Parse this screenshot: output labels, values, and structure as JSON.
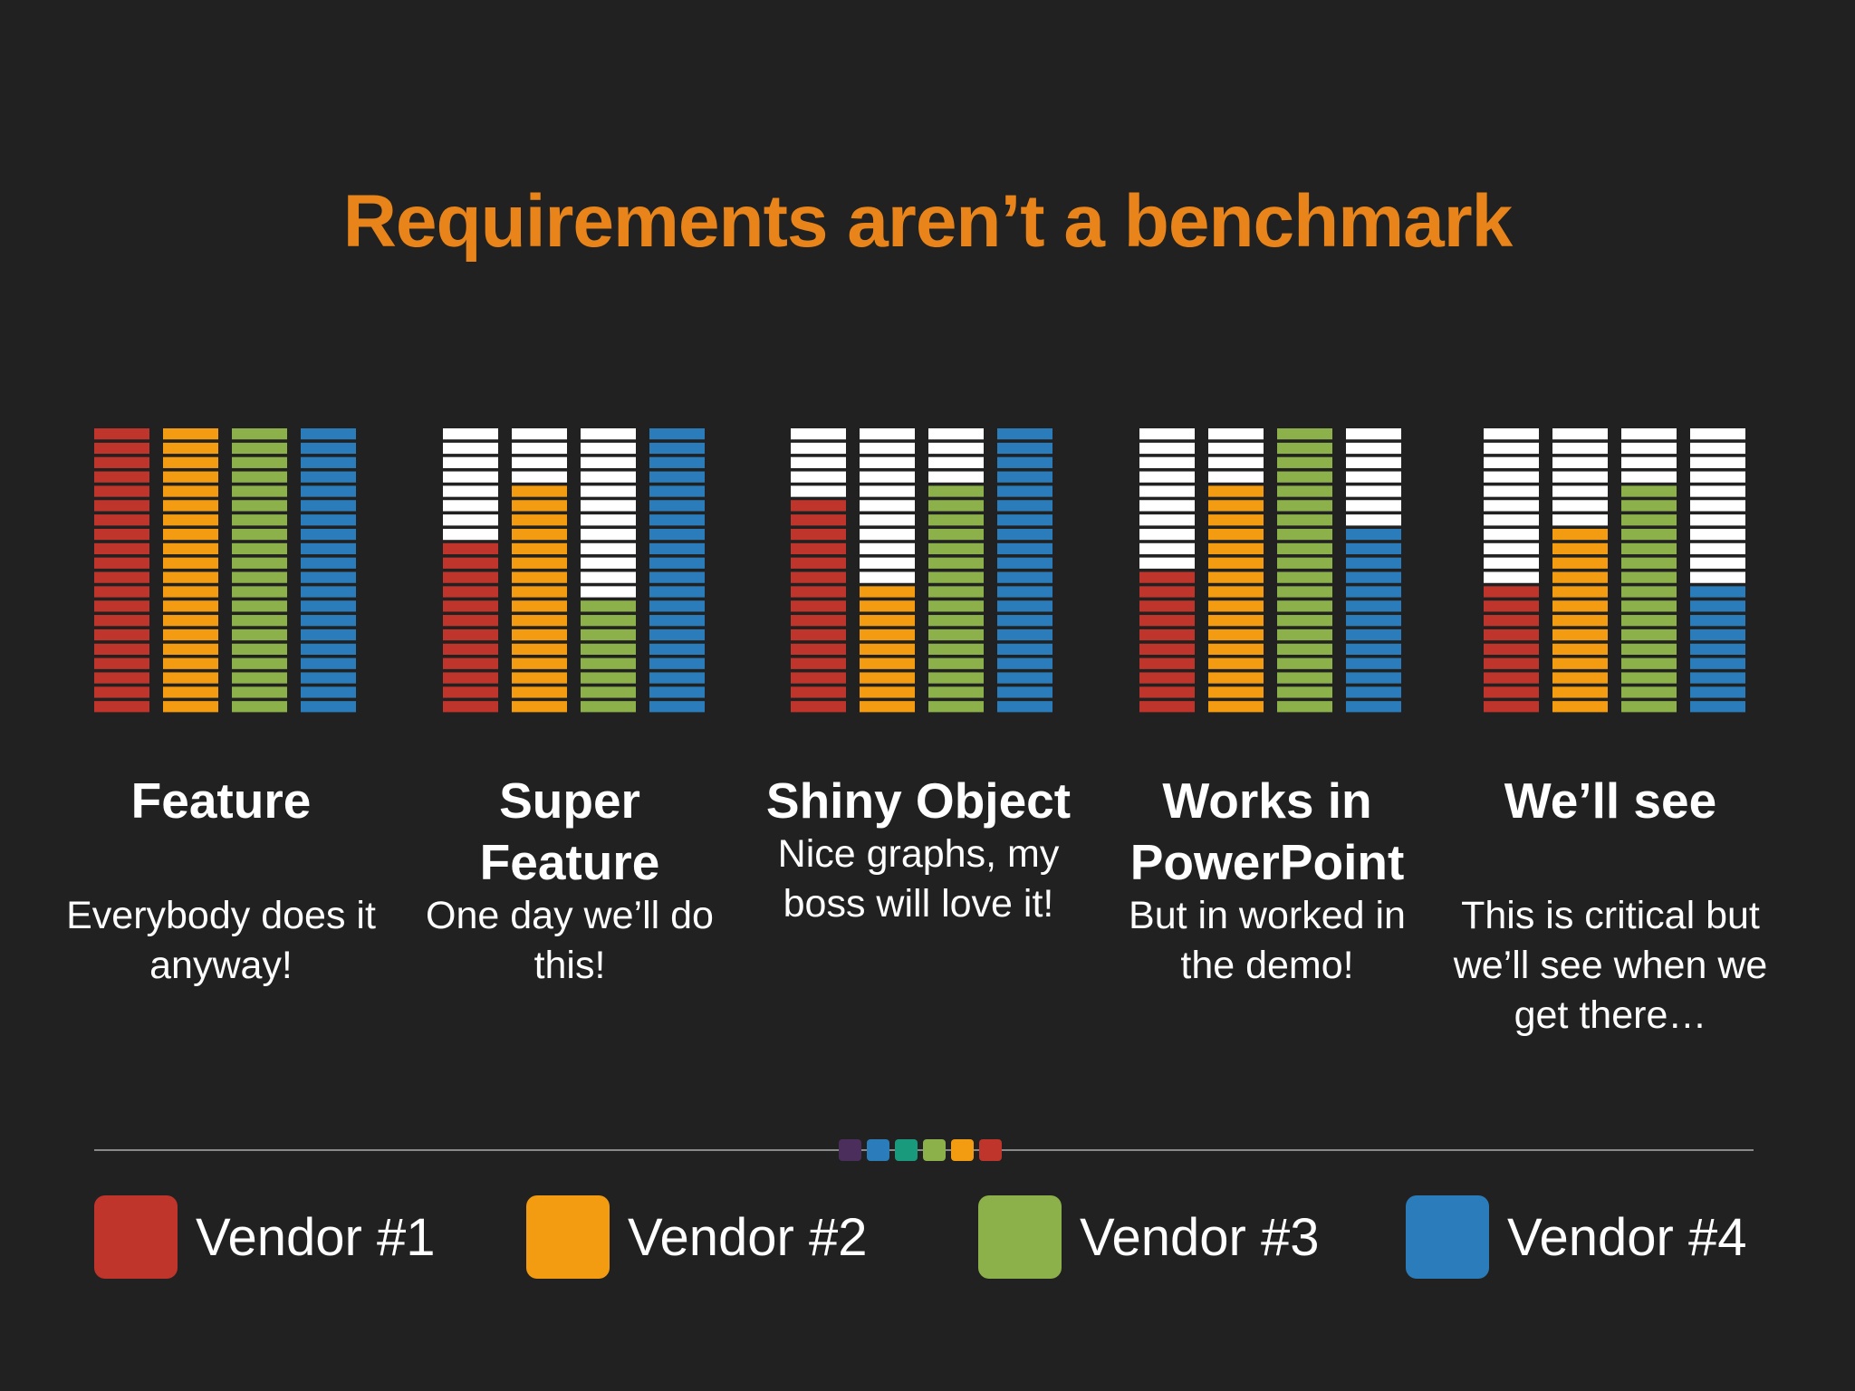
{
  "title": "Requirements aren’t a benchmark",
  "colors": {
    "background": "#212121",
    "title": "#E8841A",
    "empty": "#ffffff",
    "vendor1": "#C0352B",
    "vendor2": "#F39C12",
    "vendor3": "#8CB04A",
    "vendor4": "#2A7DBA"
  },
  "chart_data": {
    "type": "bar",
    "segments_total": 20,
    "series": [
      {
        "name": "Vendor #1",
        "color": "#C0352B"
      },
      {
        "name": "Vendor #2",
        "color": "#F39C12"
      },
      {
        "name": "Vendor #3",
        "color": "#8CB04A"
      },
      {
        "name": "Vendor #4",
        "color": "#2A7DBA"
      }
    ],
    "groups": [
      {
        "heading": "Feature",
        "description": "Everybody does it anyway!",
        "values": [
          20,
          20,
          20,
          20
        ]
      },
      {
        "heading": "Super Feature",
        "description": "One day we’ll do this!",
        "values": [
          12,
          16,
          8,
          20
        ]
      },
      {
        "heading": "Shiny Object",
        "description": "Nice graphs, my boss will love it!",
        "values": [
          15,
          9,
          16,
          20
        ]
      },
      {
        "heading": "Works in PowerPoint",
        "description": "But in worked in the demo!",
        "values": [
          10,
          16,
          20,
          13
        ]
      },
      {
        "heading": "We’ll see",
        "description": "This is critical but we’ll see when we get there…",
        "values": [
          9,
          13,
          16,
          9
        ]
      }
    ]
  },
  "divider_colors": [
    "#4B2E5C",
    "#2A7DBA",
    "#1A9A7C",
    "#8CB04A",
    "#F39C12",
    "#C0352B"
  ],
  "legend": [
    {
      "label": "Vendor #1",
      "color": "#C0352B"
    },
    {
      "label": "Vendor #2",
      "color": "#F39C12"
    },
    {
      "label": "Vendor #3",
      "color": "#8CB04A"
    },
    {
      "label": "Vendor #4",
      "color": "#2A7DBA"
    }
  ]
}
